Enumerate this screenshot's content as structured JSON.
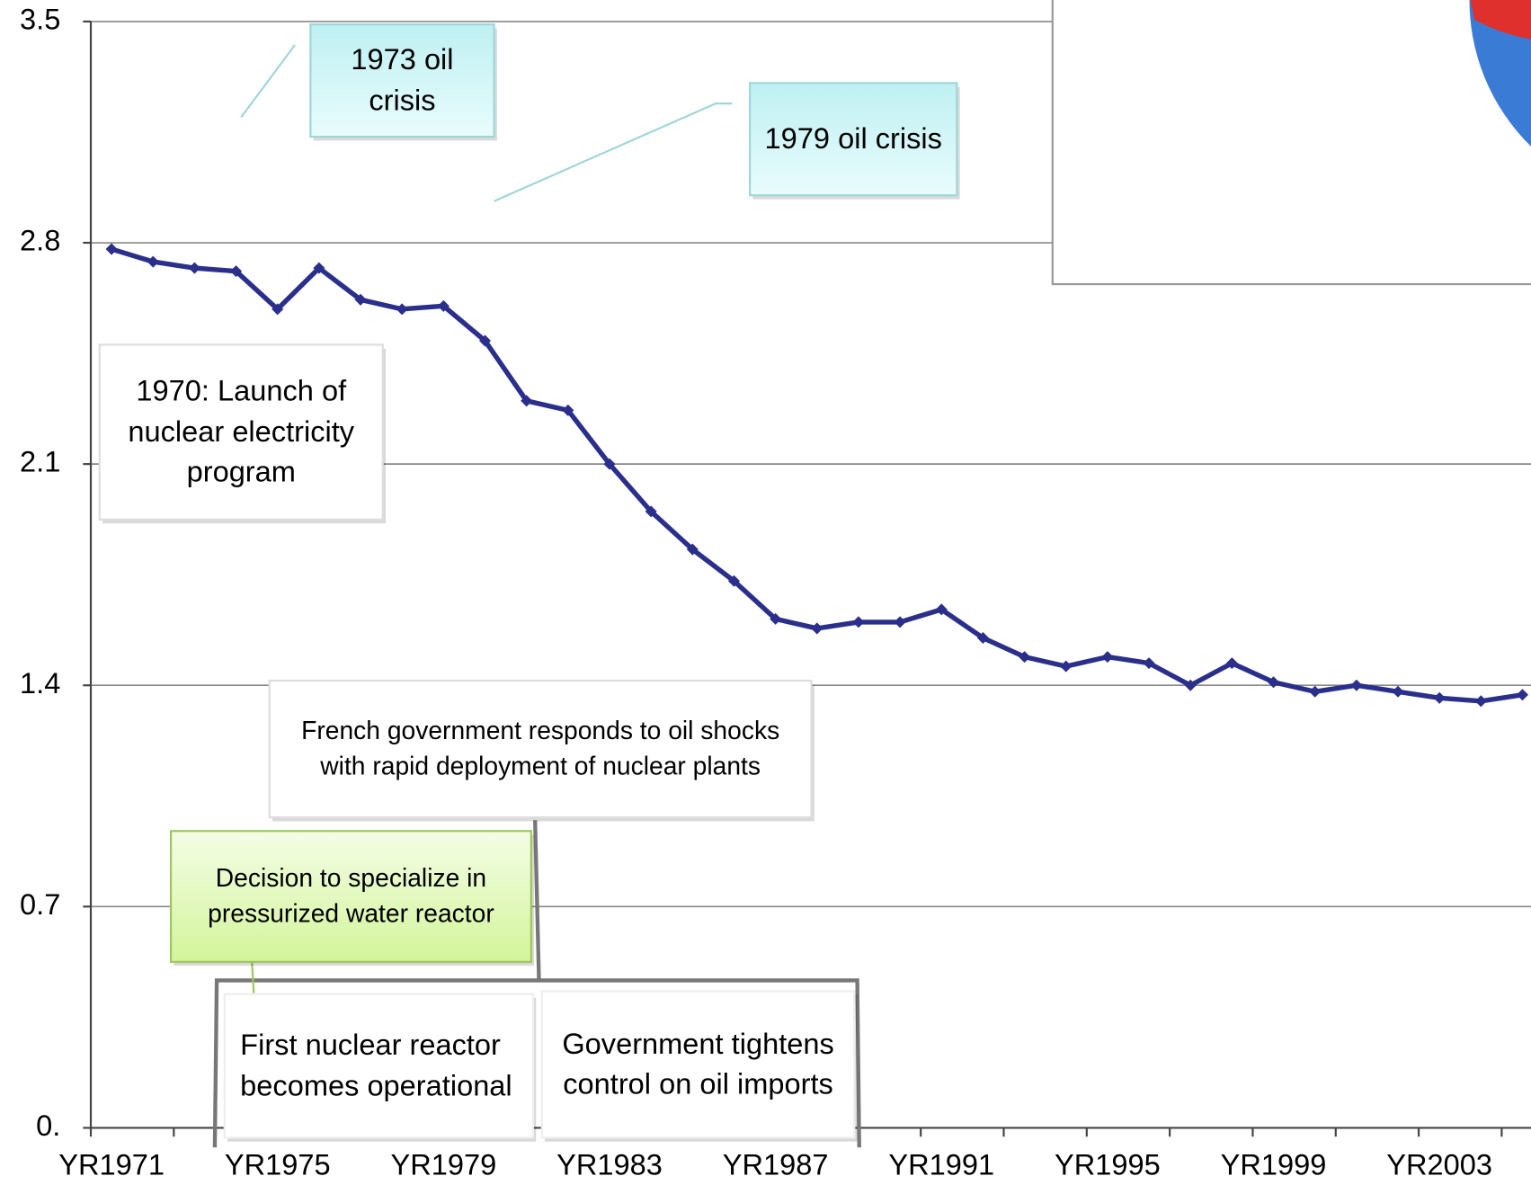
{
  "chart_data": {
    "type": "line",
    "categories": [
      "YR1971",
      null,
      null,
      null,
      "YR1975",
      null,
      null,
      null,
      "YR1979",
      null,
      null,
      null,
      "YR1983",
      null,
      null,
      null,
      "YR1987",
      null,
      null,
      null,
      "YR1991",
      null,
      null,
      null,
      "YR1995",
      null,
      null,
      null,
      "YR1999",
      null,
      null,
      null,
      "YR2003",
      null,
      null
    ],
    "series": [
      {
        "color": "#2b2f8c",
        "values": [
          2.78,
          2.74,
          2.72,
          2.71,
          2.59,
          2.72,
          2.62,
          2.59,
          2.6,
          2.49,
          2.3,
          2.27,
          2.1,
          1.95,
          1.83,
          1.73,
          1.61,
          1.58,
          1.6,
          1.6,
          1.64,
          1.55,
          1.49,
          1.46,
          1.49,
          1.47,
          1.4,
          1.47,
          1.41,
          1.38,
          1.4,
          1.38,
          1.36,
          1.35,
          1.37
        ]
      }
    ],
    "ylim": [
      0,
      3.5
    ],
    "yticks": [
      {
        "value": 0,
        "label": "0."
      },
      0.7,
      1.4,
      2.1,
      2.8,
      3.5
    ],
    "grid": true,
    "annotations": [
      "1973 oil crisis",
      "1979 oil crisis",
      "1970: Launch of nuclear electricity program",
      "French government responds to oil shocks with rapid deployment of nuclear plants",
      "Decision to specialize in pressurized water reactor",
      "First nuclear reactor becomes operational",
      "Government tightens control on oil imports"
    ]
  }
}
